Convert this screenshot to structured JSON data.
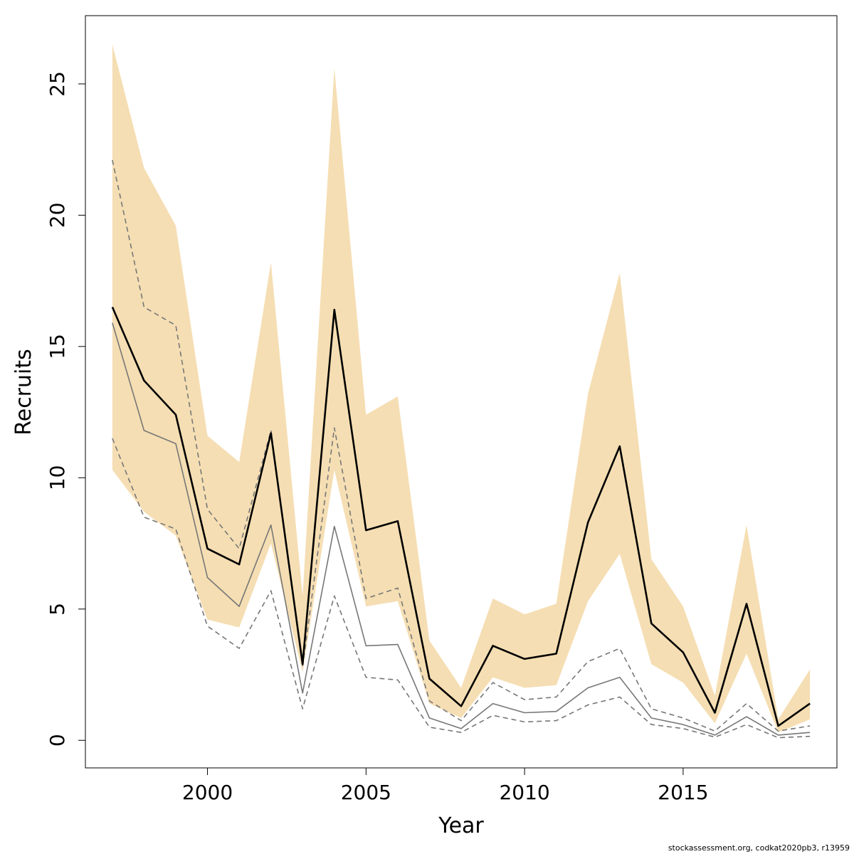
{
  "chart_data": {
    "type": "line",
    "title": "",
    "xlabel": "Year",
    "ylabel": "Recruits",
    "xlim": [
      1996.15,
      2019.85
    ],
    "ylim": [
      -1.05,
      27.6
    ],
    "x_ticks": [
      2000,
      2005,
      2010,
      2015
    ],
    "y_ticks": [
      0,
      5,
      10,
      15,
      20,
      25
    ],
    "grid": false,
    "x": [
      1997,
      1998,
      1999,
      2000,
      2001,
      2002,
      2003,
      2004,
      2005,
      2006,
      2007,
      2008,
      2009,
      2010,
      2011,
      2012,
      2013,
      2014,
      2015,
      2016,
      2017,
      2018,
      2019
    ],
    "band": {
      "color": "#f5deb3",
      "upper": [
        26.5,
        21.8,
        19.6,
        11.6,
        10.6,
        18.2,
        5.5,
        25.6,
        12.4,
        13.1,
        3.8,
        2.0,
        5.4,
        4.8,
        5.2,
        13.2,
        17.8,
        6.9,
        5.1,
        1.7,
        8.2,
        0.8,
        2.7
      ],
      "lower": [
        10.3,
        8.7,
        7.8,
        4.6,
        4.3,
        7.5,
        2.6,
        10.3,
        5.1,
        5.3,
        1.4,
        0.85,
        2.4,
        2.0,
        2.1,
        5.3,
        7.1,
        2.9,
        2.2,
        0.65,
        3.3,
        0.3,
        0.8
      ]
    },
    "series": [
      {
        "color": "#000000",
        "style": "solid",
        "values": [
          16.5,
          13.7,
          12.4,
          7.3,
          6.7,
          11.7,
          2.9,
          16.4,
          8.0,
          8.35,
          2.35,
          1.3,
          3.6,
          3.1,
          3.3,
          8.3,
          11.2,
          4.45,
          3.35,
          1.05,
          5.2,
          0.55,
          1.4
        ]
      },
      {
        "color": "#777777",
        "style": "solid",
        "values": [
          15.9,
          11.8,
          11.3,
          6.2,
          5.1,
          8.2,
          1.8,
          8.15,
          3.6,
          3.65,
          0.85,
          0.45,
          1.4,
          1.05,
          1.1,
          2.0,
          2.4,
          0.85,
          0.6,
          0.2,
          0.9,
          0.2,
          0.3
        ]
      },
      {
        "color": "#777777",
        "style": "dashed",
        "values": [
          22.1,
          16.5,
          15.8,
          8.8,
          7.3,
          11.8,
          2.8,
          11.9,
          5.4,
          5.8,
          1.5,
          0.75,
          2.2,
          1.55,
          1.65,
          3.0,
          3.5,
          1.2,
          0.85,
          0.35,
          1.4,
          0.35,
          0.55
        ]
      },
      {
        "color": "#777777",
        "style": "dashed",
        "values": [
          11.5,
          8.5,
          8.05,
          4.35,
          3.5,
          5.7,
          1.2,
          5.5,
          2.4,
          2.3,
          0.5,
          0.3,
          0.95,
          0.7,
          0.75,
          1.35,
          1.65,
          0.6,
          0.45,
          0.12,
          0.6,
          0.1,
          0.15
        ]
      }
    ],
    "credit": "stockassessment.org, codkat2020pb3, r13959"
  }
}
